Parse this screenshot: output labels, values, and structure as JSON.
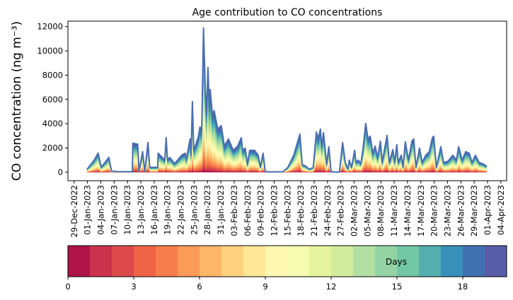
{
  "chart_data": {
    "type": "area",
    "title": "Age contribution to CO concentrations",
    "xlabel": "",
    "ylabel": "CO concentration (ng m⁻³)",
    "ylim": [
      -700,
      12450
    ],
    "yticks": [
      0,
      2000,
      4000,
      6000,
      8000,
      10000,
      12000
    ],
    "x_unit": "days since 29-Dec-2022",
    "xlim": [
      -1.4,
      97.3
    ],
    "xtick_labels": [
      "29-Dec-2022",
      "01-Jan-2023",
      "04-Jan-2023",
      "07-Jan-2023",
      "10-Jan-2023",
      "13-Jan-2023",
      "16-Jan-2023",
      "19-Jan-2023",
      "22-Jan-2023",
      "25-Jan-2023",
      "28-Jan-2023",
      "31-Jan-2023",
      "03-Feb-2023",
      "06-Feb-2023",
      "09-Feb-2023",
      "12-Feb-2023",
      "15-Feb-2023",
      "18-Feb-2023",
      "21-Feb-2023",
      "24-Feb-2023",
      "27-Feb-2023",
      "02-Mar-2023",
      "05-Mar-2023",
      "08-Mar-2023",
      "11-Mar-2023",
      "14-Mar-2023",
      "17-Mar-2023",
      "20-Mar-2023",
      "23-Mar-2023",
      "26-Mar-2023",
      "29-Mar-2023",
      "01-Apr-2023",
      "04-Apr-2023"
    ],
    "xtick_step_days": 3,
    "total": [
      [
        2.9,
        230
      ],
      [
        4.5,
        1000
      ],
      [
        5.4,
        1570
      ],
      [
        6.1,
        400
      ],
      [
        7.8,
        1220
      ],
      [
        8.4,
        100
      ],
      [
        9.9,
        40
      ],
      [
        13.1,
        40
      ],
      [
        13.2,
        2390
      ],
      [
        14.3,
        2300
      ],
      [
        14.6,
        50
      ],
      [
        15.4,
        1700
      ],
      [
        15.9,
        50
      ],
      [
        16.6,
        2450
      ],
      [
        17.0,
        400
      ],
      [
        18.8,
        400
      ],
      [
        18.9,
        1570
      ],
      [
        20.4,
        1000
      ],
      [
        20.7,
        2850
      ],
      [
        21.0,
        1000
      ],
      [
        21.5,
        1220
      ],
      [
        22.6,
        700
      ],
      [
        24.2,
        1400
      ],
      [
        25.0,
        1570
      ],
      [
        25.2,
        1000
      ],
      [
        26.1,
        2740
      ],
      [
        26.3,
        1400
      ],
      [
        26.6,
        5820
      ],
      [
        26.9,
        1800
      ],
      [
        27.9,
        2850
      ],
      [
        28.3,
        3730
      ],
      [
        28.7,
        3370
      ],
      [
        29.1,
        11880
      ],
      [
        29.5,
        6820
      ],
      [
        29.8,
        4900
      ],
      [
        30.1,
        8620
      ],
      [
        30.4,
        5300
      ],
      [
        30.6,
        6820
      ],
      [
        31.1,
        4720
      ],
      [
        31.5,
        5070
      ],
      [
        32.3,
        3550
      ],
      [
        33.1,
        3840
      ],
      [
        33.8,
        2150
      ],
      [
        34.7,
        2740
      ],
      [
        35.8,
        1800
      ],
      [
        36.8,
        2150
      ],
      [
        37.6,
        2850
      ],
      [
        37.9,
        1800
      ],
      [
        38.5,
        1980
      ],
      [
        39.0,
        640
      ],
      [
        39.5,
        1800
      ],
      [
        40.6,
        1800
      ],
      [
        41.4,
        1400
      ],
      [
        41.9,
        400
      ],
      [
        42.5,
        1570
      ],
      [
        43.0,
        50
      ],
      [
        43.8,
        30
      ],
      [
        47.0,
        40
      ],
      [
        48.1,
        400
      ],
      [
        49.4,
        1400
      ],
      [
        50.8,
        3140
      ],
      [
        51.3,
        640
      ],
      [
        52.1,
        500
      ],
      [
        52.9,
        230
      ],
      [
        53.8,
        400
      ],
      [
        54.5,
        3320
      ],
      [
        54.9,
        2740
      ],
      [
        55.4,
        3550
      ],
      [
        55.7,
        2150
      ],
      [
        56.1,
        3260
      ],
      [
        56.8,
        640
      ],
      [
        57.3,
        2100
      ],
      [
        57.8,
        50
      ],
      [
        59.2,
        0
      ],
      [
        59.7,
        50
      ],
      [
        60.4,
        2450
      ],
      [
        61.0,
        800
      ],
      [
        61.6,
        230
      ],
      [
        61.9,
        1000
      ],
      [
        62.4,
        400
      ],
      [
        63.1,
        1800
      ],
      [
        63.4,
        800
      ],
      [
        63.9,
        1000
      ],
      [
        64.5,
        700
      ],
      [
        65.0,
        1980
      ],
      [
        65.6,
        4020
      ],
      [
        66.1,
        2740
      ],
      [
        66.6,
        2970
      ],
      [
        67.2,
        1570
      ],
      [
        67.7,
        2150
      ],
      [
        68.3,
        1200
      ],
      [
        68.9,
        2560
      ],
      [
        69.3,
        800
      ],
      [
        70.4,
        3030
      ],
      [
        70.9,
        800
      ],
      [
        71.7,
        1860
      ],
      [
        72.1,
        800
      ],
      [
        72.6,
        2270
      ],
      [
        72.9,
        800
      ],
      [
        73.6,
        1400
      ],
      [
        74.0,
        400
      ],
      [
        74.5,
        2500
      ],
      [
        75.2,
        1000
      ],
      [
        76.0,
        2560
      ],
      [
        76.4,
        2740
      ],
      [
        76.9,
        400
      ],
      [
        77.7,
        1980
      ],
      [
        78.3,
        800
      ],
      [
        79.1,
        1400
      ],
      [
        79.9,
        1690
      ],
      [
        80.6,
        2850
      ],
      [
        80.9,
        2970
      ],
      [
        81.5,
        400
      ],
      [
        82.5,
        2100
      ],
      [
        83.1,
        800
      ],
      [
        84.1,
        900
      ],
      [
        85.2,
        1400
      ],
      [
        86.0,
        1000
      ],
      [
        86.5,
        2100
      ],
      [
        87.3,
        1000
      ],
      [
        88.1,
        1690
      ],
      [
        88.9,
        1570
      ],
      [
        89.5,
        800
      ],
      [
        90.3,
        1400
      ],
      [
        91.1,
        800
      ],
      [
        91.9,
        700
      ],
      [
        92.8,
        500
      ]
    ],
    "age_bins_days": [
      0,
      1,
      2,
      3,
      4,
      5,
      6,
      7,
      8,
      9,
      10,
      11,
      12,
      13,
      14,
      15,
      16,
      17,
      18,
      19,
      20
    ],
    "age_fraction_profile": [
      0.02,
      0.02,
      0.03,
      0.03,
      0.04,
      0.04,
      0.05,
      0.05,
      0.06,
      0.06,
      0.06,
      0.06,
      0.06,
      0.06,
      0.06,
      0.06,
      0.06,
      0.06,
      0.06,
      0.06
    ],
    "colormap": [
      "#ae1447",
      "#cb334c",
      "#dd4a4c",
      "#ee6445",
      "#f67e4b",
      "#fa9b58",
      "#fdb768",
      "#fed27f",
      "#fee797",
      "#fff7b2",
      "#f6fbb2",
      "#e5f49e",
      "#d1ec9c",
      "#b2e0a2",
      "#94d4a4",
      "#72c7a5",
      "#54aead",
      "#3990b9",
      "#4072b1",
      "#5a5ea8"
    ],
    "top_line_color": "#4a6db0",
    "colorbar": {
      "label": "Days",
      "range": [
        0,
        20
      ],
      "ticks": [
        "0",
        "3",
        "6",
        "9",
        "12",
        "15",
        "18"
      ],
      "placement": "bottom"
    }
  }
}
